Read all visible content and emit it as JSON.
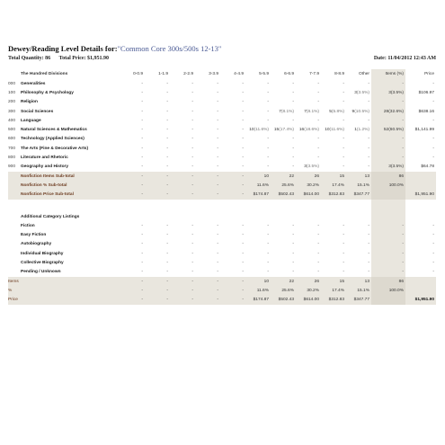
{
  "report": {
    "title_prefix": "Dewey/Reading Level Details for:",
    "collection": "\"Common Core 300s/500s 12-13\"",
    "quantity": "Total Quantity: 86",
    "price": "Total Price: $1,951.90",
    "date": "Date: 11/04/2012 12:43 AM"
  },
  "columns": [
    "0-0.9",
    "1-1.9",
    "2-2.9",
    "3-3.9",
    "4-4.9",
    "5-5.9",
    "6-6.9",
    "7-7.9",
    "8-8.9",
    "Other",
    "Items (%)",
    "Price"
  ],
  "hundred_label": "The Hundred Divisions",
  "divisions": [
    {
      "code": "000",
      "name": "Generalities",
      "cells": [
        "-",
        "-",
        "-",
        "-",
        "-",
        "-",
        "-",
        "-",
        "-",
        "-",
        "-",
        "-"
      ]
    },
    {
      "code": "100",
      "name": "Philosophy & Psychology",
      "cells": [
        "-",
        "-",
        "-",
        "-",
        "-",
        "-",
        "-",
        "-",
        "-",
        "3(3.5%)",
        "3(3.5%)",
        "$106.97"
      ]
    },
    {
      "code": "200",
      "name": "Religion",
      "cells": [
        "-",
        "-",
        "-",
        "-",
        "-",
        "-",
        "-",
        "-",
        "-",
        "-",
        "-",
        "-"
      ]
    },
    {
      "code": "300",
      "name": "Social Sciences",
      "cells": [
        "-",
        "-",
        "-",
        "-",
        "-",
        "-",
        "7(8.1%)",
        "7(8.1%)",
        "5(5.8%)",
        "9(10.5%)",
        "28(32.6%)",
        "$638.16"
      ]
    },
    {
      "code": "400",
      "name": "Language",
      "cells": [
        "-",
        "-",
        "-",
        "-",
        "-",
        "-",
        "-",
        "-",
        "-",
        "-",
        "-",
        "-"
      ]
    },
    {
      "code": "500",
      "name": "Natural Sciences & Mathematics",
      "cells": [
        "-",
        "-",
        "-",
        "-",
        "-",
        "10(11.6%)",
        "15(17.4%)",
        "16(18.6%)",
        "10(11.6%)",
        "1(1.2%)",
        "52(60.5%)",
        "$1,141.99"
      ]
    },
    {
      "code": "600",
      "name": "Technology (Applied Sciences)",
      "cells": [
        "-",
        "-",
        "-",
        "-",
        "-",
        "-",
        "-",
        "-",
        "-",
        "-",
        "-",
        "-"
      ]
    },
    {
      "code": "700",
      "name": "The Arts (Fine & Decorative Arts)",
      "cells": [
        "-",
        "-",
        "-",
        "-",
        "-",
        "-",
        "-",
        "-",
        "-",
        "-",
        "-",
        "-"
      ]
    },
    {
      "code": "800",
      "name": "Literature and Rhetoric",
      "cells": [
        "-",
        "-",
        "-",
        "-",
        "-",
        "-",
        "-",
        "-",
        "-",
        "-",
        "-",
        "-"
      ]
    },
    {
      "code": "900",
      "name": "Geography and History",
      "cells": [
        "-",
        "-",
        "-",
        "-",
        "-",
        "-",
        "-",
        "3(3.5%)",
        "-",
        "-",
        "3(3.5%)",
        "$64.78"
      ]
    }
  ],
  "nonfiction_subtotals": [
    {
      "name": "Nonfiction Items Sub-total",
      "cells": [
        "-",
        "-",
        "-",
        "-",
        "-",
        "10",
        "22",
        "26",
        "15",
        "13",
        "86",
        ""
      ]
    },
    {
      "name": "Nonfiction % Sub-total",
      "cells": [
        "-",
        "-",
        "-",
        "-",
        "-",
        "11.6%",
        "25.6%",
        "30.2%",
        "17.4%",
        "15.1%",
        "100.0%",
        ""
      ]
    },
    {
      "name": "Nonfiction Price Sub-total",
      "cells": [
        "-",
        "-",
        "-",
        "-",
        "-",
        "$174.87",
        "$502.43",
        "$614.00",
        "$312.83",
        "$347.77",
        "",
        "$1,951.90"
      ]
    }
  ],
  "additional_label": "Additional Category Listings",
  "additional": [
    {
      "name": "Fiction",
      "cells": [
        "-",
        "-",
        "-",
        "-",
        "-",
        "-",
        "-",
        "-",
        "-",
        "-",
        "-",
        "-"
      ]
    },
    {
      "name": "Easy Fiction",
      "cells": [
        "-",
        "-",
        "-",
        "-",
        "-",
        "-",
        "-",
        "-",
        "-",
        "-",
        "-",
        "-"
      ]
    },
    {
      "name": "Autobiography",
      "cells": [
        "-",
        "-",
        "-",
        "-",
        "-",
        "-",
        "-",
        "-",
        "-",
        "-",
        "-",
        "-"
      ]
    },
    {
      "name": "Individual Biography",
      "cells": [
        "-",
        "-",
        "-",
        "-",
        "-",
        "-",
        "-",
        "-",
        "-",
        "-",
        "-",
        "-"
      ]
    },
    {
      "name": "Collective Biography",
      "cells": [
        "-",
        "-",
        "-",
        "-",
        "-",
        "-",
        "-",
        "-",
        "-",
        "-",
        "-",
        "-"
      ]
    },
    {
      "name": "Pending / Unknown",
      "cells": [
        "-",
        "-",
        "-",
        "-",
        "-",
        "-",
        "-",
        "-",
        "-",
        "-",
        "-",
        "-"
      ]
    }
  ],
  "totals": [
    {
      "name": "Items",
      "cells": [
        "-",
        "-",
        "-",
        "-",
        "-",
        "10",
        "22",
        "26",
        "15",
        "13",
        "86",
        ""
      ]
    },
    {
      "name": "%",
      "cells": [
        "-",
        "-",
        "-",
        "-",
        "-",
        "11.6%",
        "25.6%",
        "30.2%",
        "17.4%",
        "15.1%",
        "100.0%",
        ""
      ]
    },
    {
      "name": "Price",
      "cells": [
        "-",
        "-",
        "-",
        "-",
        "-",
        "$174.87",
        "$502.43",
        "$614.00",
        "$312.83",
        "$347.77",
        "",
        "$1,951.90"
      ]
    }
  ]
}
